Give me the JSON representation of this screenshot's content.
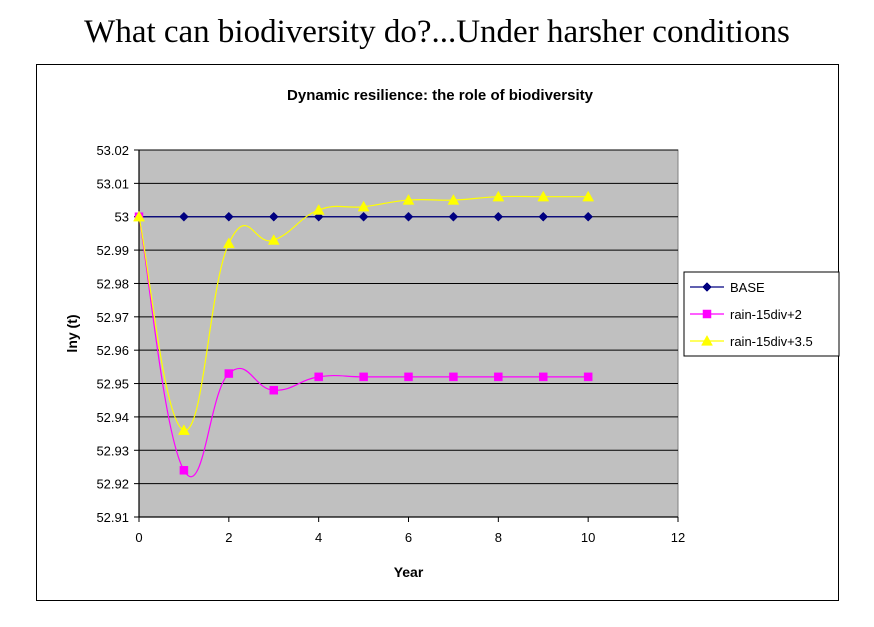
{
  "slide": {
    "title": "What can biodiversity do?...Under harsher conditions"
  },
  "colors": {
    "plot_background": "#C0C0C0",
    "gridline": "#000000",
    "base": "#000080",
    "rain_div2": "#FF00FF",
    "rain_div35": "#FFFF00"
  },
  "chart_data": {
    "type": "line",
    "title": "Dynamic resilience: the role of biodiversity",
    "xlabel": "Year",
    "ylabel": "lny (t)",
    "xlim": [
      0,
      12
    ],
    "ylim": [
      52.91,
      53.02
    ],
    "x_ticks": [
      "0",
      "2",
      "4",
      "6",
      "8",
      "10",
      "12"
    ],
    "y_ticks": [
      "52.91",
      "52.92",
      "52.93",
      "52.94",
      "52.95",
      "52.96",
      "52.97",
      "52.98",
      "52.99",
      "53",
      "53.01",
      "53.02"
    ],
    "grid": "horizontal",
    "legend_position": "right",
    "x": [
      0,
      1,
      2,
      3,
      4,
      5,
      6,
      7,
      8,
      9,
      10
    ],
    "series": [
      {
        "name": "BASE",
        "color": "#000080",
        "marker": "diamond",
        "values": [
          53.0,
          53.0,
          53.0,
          53.0,
          53.0,
          53.0,
          53.0,
          53.0,
          53.0,
          53.0,
          53.0
        ]
      },
      {
        "name": "rain-15div+2",
        "color": "#FF00FF",
        "marker": "square",
        "values": [
          53.0,
          52.924,
          52.953,
          52.948,
          52.952,
          52.952,
          52.952,
          52.952,
          52.952,
          52.952,
          52.952
        ]
      },
      {
        "name": "rain-15div+3.5",
        "color": "#FFFF00",
        "marker": "triangle",
        "values": [
          53.0,
          52.936,
          52.992,
          52.993,
          53.002,
          53.003,
          53.005,
          53.005,
          53.006,
          53.006,
          53.006
        ]
      }
    ]
  }
}
